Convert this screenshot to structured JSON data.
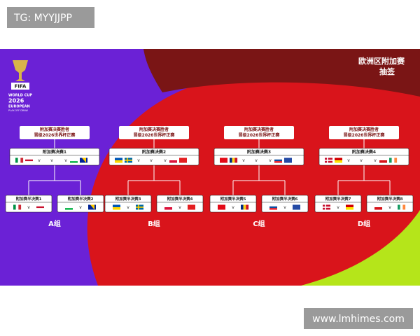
{
  "watermark_top": "TG: MYYJJPP",
  "watermark_bottom": "www.lmhimes.com",
  "logo": {
    "brand": "FIFA",
    "line1": "WORLD CUP",
    "year": "2026",
    "line2": "EUROPEAN",
    "line3": "PLAY-OFF DRAW"
  },
  "title": [
    "欧洲区附加赛",
    "抽签"
  ],
  "versus": "v",
  "paths": [
    {
      "group": "A组",
      "winner": [
        "附加赛决赛胜者",
        "晋级2026世界杯正赛"
      ],
      "final": "附加赛决赛1",
      "semifinals": [
        "附加赛半决赛1",
        "附加赛半决赛2"
      ]
    },
    {
      "group": "B组",
      "winner": [
        "附加赛决赛胜者",
        "晋级2026世界杯正赛"
      ],
      "final": "附加赛决赛2",
      "semifinals": [
        "附加赛半决赛3",
        "附加赛半决赛4"
      ]
    },
    {
      "group": "C组",
      "winner": [
        "附加赛决赛胜者",
        "晋级2026世界杯正赛"
      ],
      "final": "附加赛决赛3",
      "semifinals": [
        "附加赛半决赛5",
        "附加赛半决赛6"
      ]
    },
    {
      "group": "D组",
      "winner": [
        "附加赛决赛胜者",
        "晋级2026世界杯正赛"
      ],
      "final": "附加赛决赛4",
      "semifinals": [
        "附加赛半决赛7",
        "附加赛半决赛8"
      ]
    }
  ]
}
